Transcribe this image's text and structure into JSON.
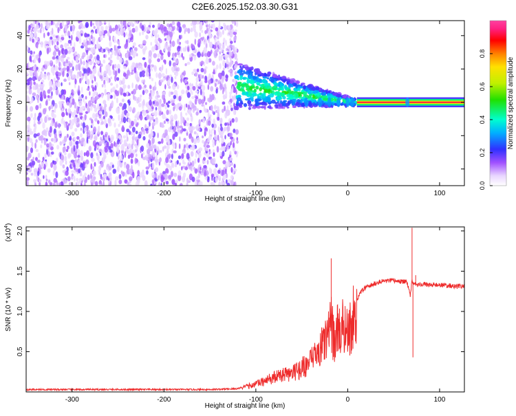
{
  "title": "C2E6.2025.152.03.30.G31",
  "chart_data": [
    {
      "type": "heatmap",
      "xlabel": "Height of straight line (km)",
      "ylabel": "Frequency (Hz)",
      "xlim": [
        -350,
        127
      ],
      "ylim": [
        -50,
        49
      ],
      "xticks": [
        -300,
        -200,
        -100,
        0,
        100
      ],
      "yticks": [
        -40,
        -20,
        0,
        20,
        40
      ],
      "colorbar": {
        "label": "Normalized spectral amplitude",
        "range": [
          0,
          1
        ],
        "ticks": [
          0.0,
          0.2,
          0.4,
          0.6,
          0.8
        ],
        "tick_labels": [
          "0.0",
          "0.2",
          "0.4",
          "0.6",
          "0.8"
        ]
      },
      "regions": [
        {
          "x": [
            -350,
            -120
          ],
          "description_level": 0.1,
          "freq_spread": [
            -50,
            49
          ]
        },
        {
          "x": [
            -120,
            10
          ],
          "freq_center_start": 10,
          "freq_center_end": 0,
          "level_start": 0.3,
          "level_end": 0.5
        },
        {
          "x": [
            10,
            127
          ],
          "freq": 0,
          "level": 0.95
        }
      ],
      "feature_markers_x": [
        -45,
        -30,
        -20,
        -10,
        0,
        5,
        65
      ]
    },
    {
      "type": "line",
      "xlabel": "Height of straight line (km)",
      "ylabel": "SNR (10 * v/v)",
      "y_multiplier_label": "(x10",
      "y_multiplier_exp": "4",
      "xlim": [
        -350,
        127
      ],
      "ylim": [
        0,
        2.05
      ],
      "xticks": [
        -300,
        -200,
        -100,
        0,
        100
      ],
      "yticks": [
        0.5,
        1.0,
        1.5,
        2.0
      ],
      "ytick_labels": [
        "0.5",
        "1.0",
        "1.5",
        "2.0"
      ],
      "color": "#ee2b2b",
      "series": [
        {
          "x": [
            -350,
            -300,
            -250,
            -200,
            -150,
            -120,
            -110,
            -100,
            -90,
            -80,
            -70,
            -60,
            -50,
            -40,
            -30,
            -25,
            -20,
            -18,
            -15,
            -10,
            -5,
            0,
            5,
            10,
            15,
            20,
            25,
            30,
            40,
            50,
            60,
            65,
            68,
            70,
            72,
            75,
            80,
            90,
            100,
            110,
            120,
            127
          ],
          "y": [
            0.03,
            0.03,
            0.03,
            0.03,
            0.03,
            0.04,
            0.08,
            0.12,
            0.16,
            0.22,
            0.25,
            0.28,
            0.36,
            0.45,
            0.65,
            0.75,
            0.9,
            1.0,
            0.8,
            0.95,
            1.0,
            0.9,
            1.1,
            1.15,
            1.25,
            1.3,
            1.32,
            1.35,
            1.38,
            1.38,
            1.37,
            1.36,
            1.2,
            1.38,
            1.36,
            1.33,
            1.34,
            1.33,
            1.33,
            1.32,
            1.31,
            1.32
          ]
        }
      ],
      "spikes": [
        {
          "x": -18,
          "y": 1.66
        },
        {
          "x": 70,
          "y": 2.04
        },
        {
          "x": 71,
          "y": 0.43
        },
        {
          "x": 74,
          "y": 1.45
        }
      ]
    }
  ]
}
